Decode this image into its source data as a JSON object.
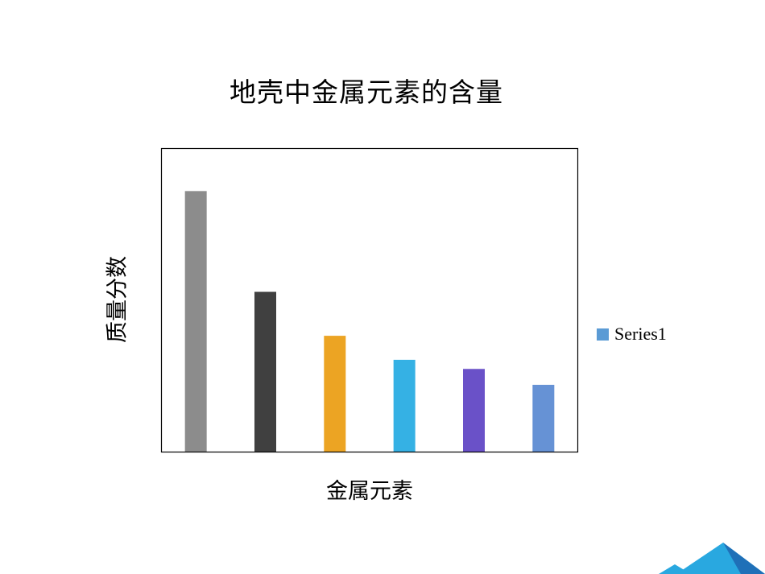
{
  "chart_data": {
    "type": "bar",
    "title": "地壳中金属元素的含量",
    "xlabel": "金属元素",
    "ylabel": "质量分数",
    "categories": [
      "",
      "",
      "",
      "",
      "",
      ""
    ],
    "series": [
      {
        "name": "Series1",
        "values": [
          7.73,
          4.75,
          3.45,
          2.74,
          2.47,
          2.0
        ],
        "colors": [
          "#8c8c8c",
          "#404040",
          "#eca423",
          "#35b1e4",
          "#6a51c8",
          "#6692d5"
        ]
      }
    ],
    "ylim": [
      0,
      9.0
    ],
    "grid": false,
    "legend_position": "right"
  },
  "colors": {
    "legend_swatch": "#5b9bd5",
    "plot_border": "#000000",
    "logo_dark": "#1f70b8",
    "logo_light": "#29a8e0"
  },
  "icons": {
    "corner_logo": "mountain-logo-icon"
  }
}
